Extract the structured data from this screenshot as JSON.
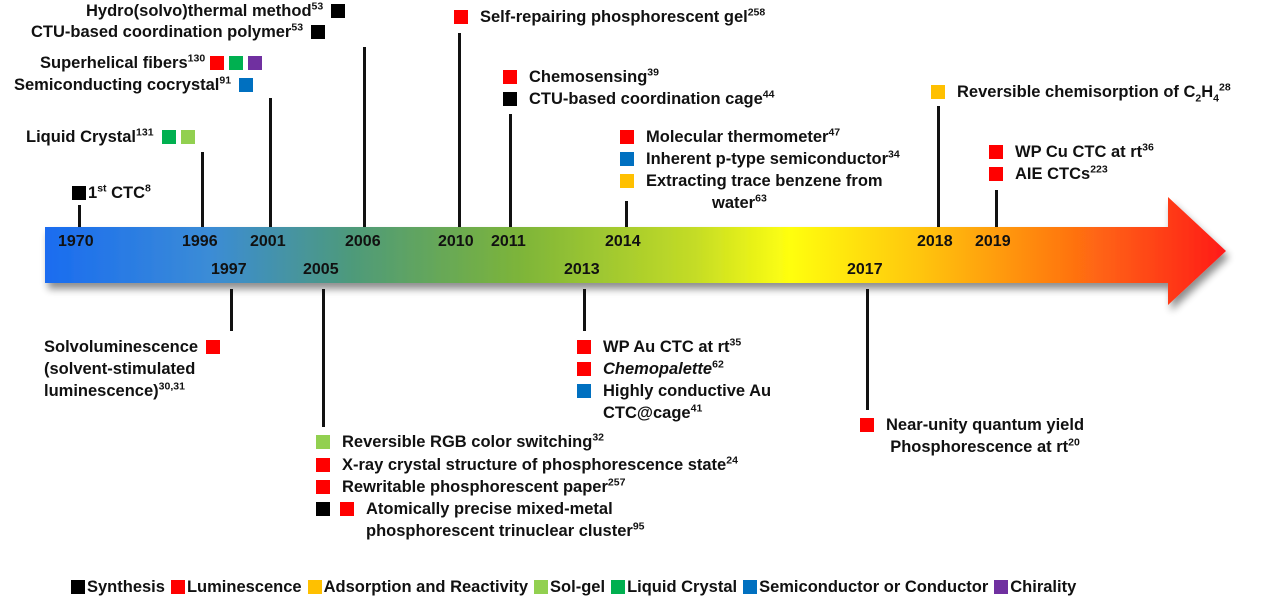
{
  "colors": {
    "Synthesis": "#000000",
    "Luminescence": "#ff0000",
    "Adsorption and Reactivity": "#ffc000",
    "Sol-gel": "#92d050",
    "Liquid Crystal": "#00b050",
    "Semiconductor or Conductor": "#0070c0",
    "Chirality": "#7030a0"
  },
  "legend": [
    {
      "label": "Synthesis",
      "color": "#000000"
    },
    {
      "label": "Luminescence",
      "color": "#ff0000"
    },
    {
      "label": "Adsorption and Reactivity",
      "color": "#ffc000"
    },
    {
      "label": "Sol-gel",
      "color": "#92d050"
    },
    {
      "label": "Liquid Crystal",
      "color": "#00b050"
    },
    {
      "label": "Semiconductor or Conductor",
      "color": "#0070c0"
    },
    {
      "label": "Chirality",
      "color": "#7030a0"
    }
  ],
  "years_above": [
    "1970",
    "1996",
    "2001",
    "2006",
    "2010",
    "2011",
    "2014",
    "2018",
    "2019"
  ],
  "years_below": [
    "1997",
    "2005",
    "2013",
    "2017"
  ],
  "events": {
    "1970": {
      "text": "1",
      "sup1": "st",
      "text2": " CTC",
      "ref": "8"
    },
    "1996": {
      "text": "Liquid Crystal",
      "ref": "131"
    },
    "2001a": {
      "text": "Superhelical fibers",
      "ref": "130"
    },
    "2001b": {
      "text": "Semiconducting cocrystal",
      "ref": "91"
    },
    "2006a": {
      "text": "Hydro(solvo)thermal method",
      "ref": "53"
    },
    "2006b": {
      "text": "CTU-based coordination polymer",
      "ref": "53"
    },
    "2010": {
      "text": "Self-repairing phosphorescent gel",
      "ref": "258"
    },
    "2011a": {
      "text": "Chemosensing",
      "ref": "39"
    },
    "2011b": {
      "text": "CTU-based coordination cage",
      "ref": "44"
    },
    "2014a": {
      "text": "Molecular thermometer",
      "ref": "47"
    },
    "2014b": {
      "text": "Inherent p-type semiconductor",
      "ref": "34"
    },
    "2014c": {
      "text": "Extracting trace benzene from",
      "text2": "water",
      "ref": "63"
    },
    "2018": {
      "text": "Reversible chemisorption of C",
      "sub": "2",
      "text2": "H",
      "sub2": "4",
      "ref": "28"
    },
    "2019a": {
      "text": "WP Cu CTC at rt",
      "ref": "36"
    },
    "2019b": {
      "text": "AIE CTCs",
      "ref": "223"
    },
    "1997": {
      "line1": "Solvoluminescence",
      "line2": "(solvent-stimulated",
      "line3": "luminescence)",
      "ref": "30,31"
    },
    "2005a": {
      "text": "Reversible RGB color switching",
      "ref": "32"
    },
    "2005b": {
      "text": "X-ray crystal structure of phosphorescence state",
      "ref": "24"
    },
    "2005c": {
      "text": "Rewritable phosphorescent paper",
      "ref": "257"
    },
    "2005d": {
      "line1": "Atomically precise mixed-metal",
      "line2": "phosphorescent trinuclear cluster",
      "ref": "95"
    },
    "2013a": {
      "text": "WP Au CTC at rt",
      "ref": "35"
    },
    "2013b": {
      "text": "Chemopalette",
      "ref": "62"
    },
    "2013c": {
      "line1": "Highly conductive Au",
      "line2": "CTC@cage",
      "ref": "41"
    },
    "2017": {
      "line1": "Near-unity quantum yield",
      "line2": "Phosphorescence at rt",
      "ref": "20"
    }
  }
}
